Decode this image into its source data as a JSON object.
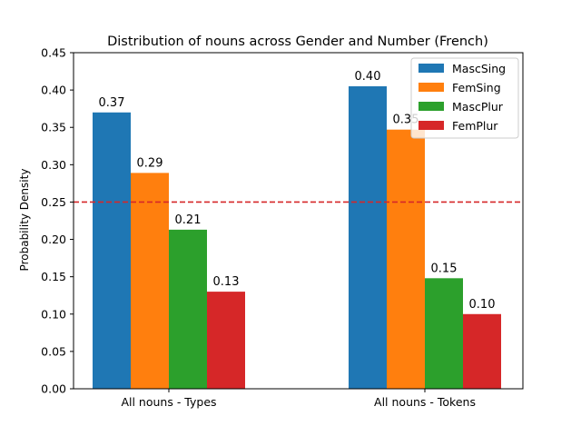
{
  "chart_data": {
    "type": "bar",
    "title": "Distribution of nouns across Gender and Number (French)",
    "xlabel": "",
    "ylabel": "Probability Density",
    "ylim": [
      0,
      0.45
    ],
    "yticks": [
      "0.00",
      "0.05",
      "0.10",
      "0.15",
      "0.20",
      "0.25",
      "0.30",
      "0.35",
      "0.40",
      "0.45"
    ],
    "categories": [
      "All nouns - Types",
      "All nouns - Tokens"
    ],
    "series": [
      {
        "name": "MascSing",
        "color": "#1f77b4",
        "values": [
          0.37,
          0.405
        ],
        "labels": [
          "0.37",
          "0.40"
        ]
      },
      {
        "name": "FemSing",
        "color": "#ff7f0e",
        "values": [
          0.289,
          0.347
        ],
        "labels": [
          "0.29",
          "0.35"
        ]
      },
      {
        "name": "MascPlur",
        "color": "#2ca02c",
        "values": [
          0.213,
          0.148
        ],
        "labels": [
          "0.21",
          "0.15"
        ]
      },
      {
        "name": "FemPlur",
        "color": "#d62728",
        "values": [
          0.13,
          0.1
        ],
        "labels": [
          "0.13",
          "0.10"
        ]
      }
    ],
    "reference_line": {
      "value": 0.25,
      "color": "#d62728",
      "style": "dashed"
    },
    "grid": false,
    "legend": "top-right"
  }
}
